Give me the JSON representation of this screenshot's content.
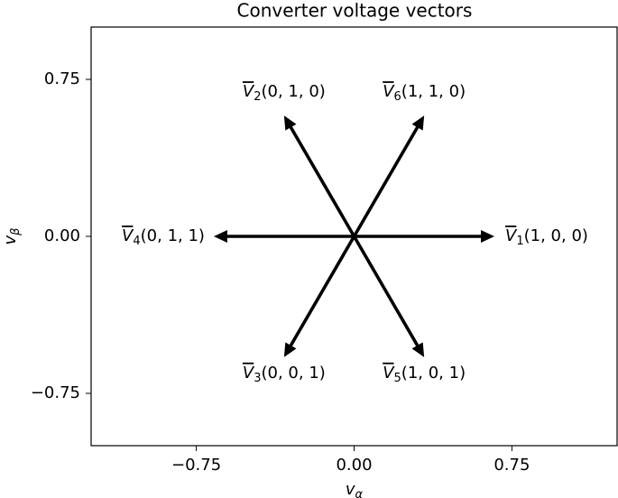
{
  "chart_data": {
    "type": "quiver",
    "title": "Converter voltage vectors",
    "xlabel": {
      "base": "v",
      "sub": "α"
    },
    "ylabel": {
      "base": "v",
      "sub": "β"
    },
    "xlim": [
      -1.25,
      1.25
    ],
    "ylim": [
      -1,
      1
    ],
    "xticks": [
      {
        "value": -0.75,
        "label": "−0.75"
      },
      {
        "value": 0,
        "label": "0.00"
      },
      {
        "value": 0.75,
        "label": "0.75"
      }
    ],
    "yticks": [
      {
        "value": -0.75,
        "label": "−0.75"
      },
      {
        "value": 0,
        "label": "0.00"
      },
      {
        "value": 0.75,
        "label": "0.75"
      }
    ],
    "color": "#000000",
    "vectors": [
      {
        "name": "V",
        "sub": "1",
        "tuple": "(1, 0, 0)",
        "u": 0.667,
        "v": 0
      },
      {
        "name": "V",
        "sub": "2",
        "tuple": "(0, 1, 0)",
        "u": -0.333,
        "v": 0.577
      },
      {
        "name": "V",
        "sub": "3",
        "tuple": "(0, 0, 1)",
        "u": -0.333,
        "v": -0.577
      },
      {
        "name": "V",
        "sub": "4",
        "tuple": "(0, 1, 1)",
        "u": -0.667,
        "v": 0
      },
      {
        "name": "V",
        "sub": "5",
        "tuple": "(1, 0, 1)",
        "u": 0.333,
        "v": -0.577
      },
      {
        "name": "V",
        "sub": "6",
        "tuple": "(1, 1, 0)",
        "u": 0.333,
        "v": 0.577
      }
    ]
  }
}
